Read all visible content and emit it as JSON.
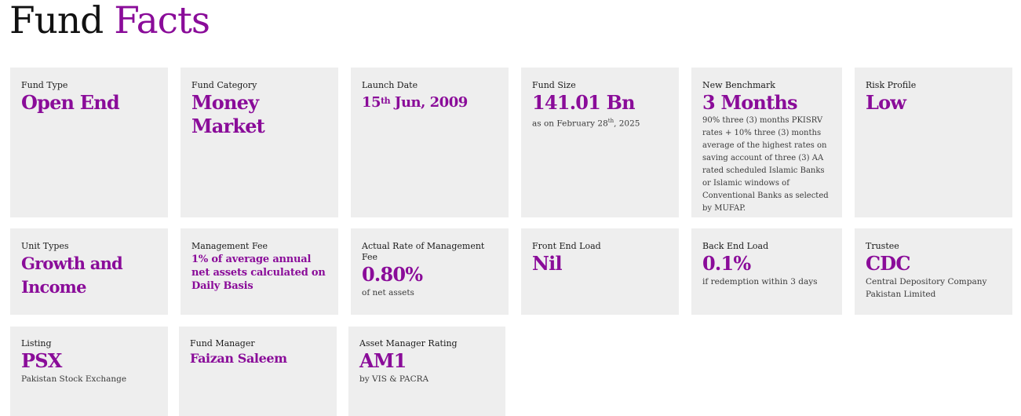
{
  "header": {
    "title_part1": "Fund",
    "title_part2": "Facts"
  },
  "cards": {
    "fund_type": {
      "label": "Fund Type",
      "value": "Open End"
    },
    "fund_category": {
      "label": "Fund Category",
      "value_line1": "Money",
      "value_line2": "Market"
    },
    "launch_date": {
      "label": "Launch Date",
      "day": "15",
      "suffix": "th",
      "rest": " Jun, 2009"
    },
    "fund_size": {
      "label": "Fund Size",
      "value": "141.01 Bn",
      "note_prefix": "as on February 28",
      "note_suffix": "th",
      "note_rest": ", 2025"
    },
    "new_benchmark": {
      "label": "New Benchmark",
      "value": "3 Months",
      "note": "90% three (3) months PKISRV rates + 10% three (3) months average of the highest rates on saving account of three (3) AA rated scheduled Islamic Banks or Islamic windows of Conventional Banks as selected by MUFAP."
    },
    "risk_profile": {
      "label": "Risk Profile",
      "value": "Low"
    },
    "unit_types": {
      "label": "Unit Types",
      "value_line1": "Growth and",
      "value_line2": "Income"
    },
    "management_fee": {
      "label": "Management Fee",
      "value": "1% of average annual net assets calculated on Daily Basis"
    },
    "actual_rate": {
      "label": "Actual Rate of Management Fee",
      "value": "0.80%",
      "note": "of net assets"
    },
    "front_end_load": {
      "label": "Front End Load",
      "value": "Nil"
    },
    "back_end_load": {
      "label": "Back End Load",
      "value": "0.1%",
      "note": "if redemption within 3 days"
    },
    "trustee": {
      "label": "Trustee",
      "value": "CDC",
      "note": "Central Depository Company Pakistan Limited"
    },
    "listing": {
      "label": "Listing",
      "value": "PSX",
      "note": "Pakistan Stock Exchange"
    },
    "fund_manager": {
      "label": "Fund Manager",
      "value": "Faizan Saleem"
    },
    "asset_manager_rating": {
      "label": "Asset Manager Rating",
      "value": "AM1",
      "note": "by VIS & PACRA"
    }
  },
  "colors": {
    "accent": "#8a0c99",
    "card_bg": "#eeeeee",
    "text": "#1b1b1b"
  }
}
